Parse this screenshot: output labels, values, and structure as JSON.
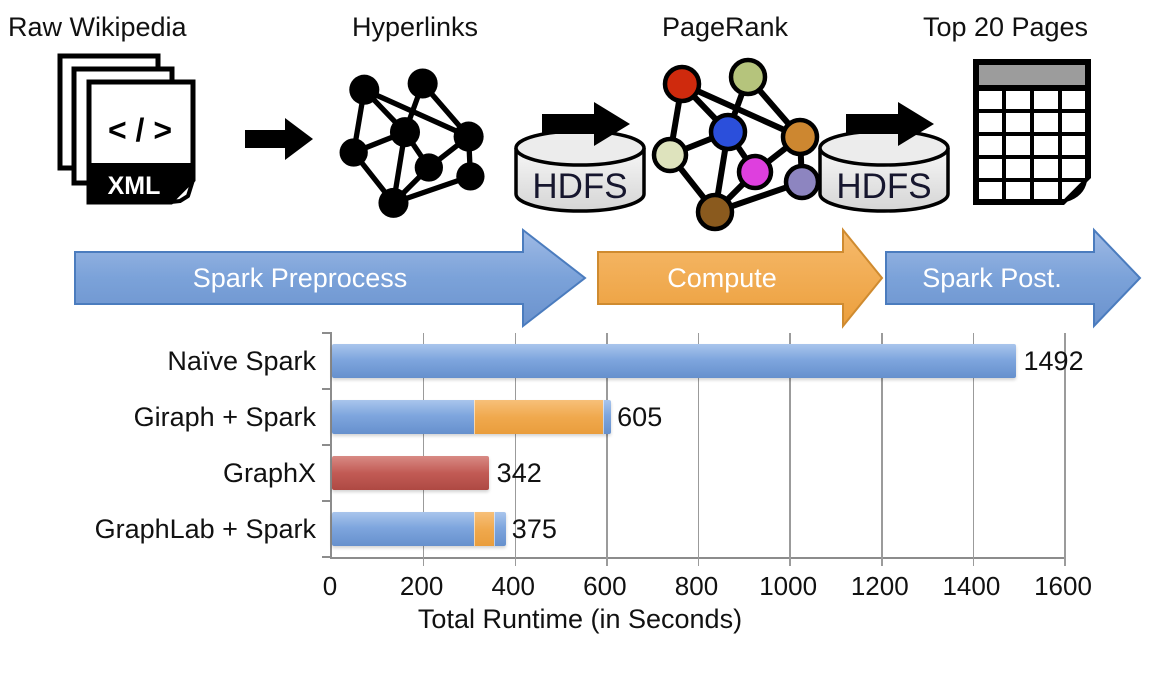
{
  "stage_labels": {
    "raw_wikipedia": "Raw Wikipedia",
    "hyperlinks": "Hyperlinks",
    "pagerank": "PageRank",
    "top_20_pages": "Top 20 Pages"
  },
  "icons": {
    "xml_file": {
      "code_text": "< / >",
      "badge": "XML"
    },
    "hdfs_left": {
      "label": "HDFS"
    },
    "hdfs_right": {
      "label": "HDFS"
    }
  },
  "pipeline_arrows": [
    {
      "label": "Spark Preprocess",
      "color": "#7BA2D9"
    },
    {
      "label": "Compute",
      "color": "#F0A94E"
    },
    {
      "label": "Spark Post.",
      "color": "#7BA2D9"
    }
  ],
  "chart_data": {
    "type": "bar",
    "orientation": "horizontal",
    "stacked": true,
    "title": "",
    "xlabel": "Total Runtime (in Seconds)",
    "ylabel": "",
    "xlim": [
      0,
      1600
    ],
    "xticks": [
      0,
      200,
      400,
      600,
      800,
      1000,
      1200,
      1400,
      1600
    ],
    "grid": true,
    "colors": {
      "spark": "#7FA6DE",
      "compute": "#F0A94E",
      "graphx": "#C0504D"
    },
    "categories": [
      "Naïve Spark",
      "Giraph + Spark",
      "GraphX",
      "GraphLab + Spark"
    ],
    "totals": [
      1492,
      605,
      342,
      375
    ],
    "rows": [
      {
        "label": "Naïve Spark",
        "total": "1492",
        "segments": [
          {
            "name": "spark",
            "value": 1492
          }
        ]
      },
      {
        "label": "Giraph + Spark",
        "total": "605",
        "segments": [
          {
            "name": "spark",
            "value": 310
          },
          {
            "name": "compute",
            "value": 280
          },
          {
            "name": "spark",
            "value": 15
          }
        ]
      },
      {
        "label": "GraphX",
        "total": "342",
        "segments": [
          {
            "name": "graphx",
            "value": 342
          }
        ]
      },
      {
        "label": "GraphLab + Spark",
        "total": "375",
        "segments": [
          {
            "name": "spark",
            "value": 310
          },
          {
            "name": "compute",
            "value": 42
          },
          {
            "name": "spark",
            "value": 23
          }
        ]
      }
    ]
  }
}
